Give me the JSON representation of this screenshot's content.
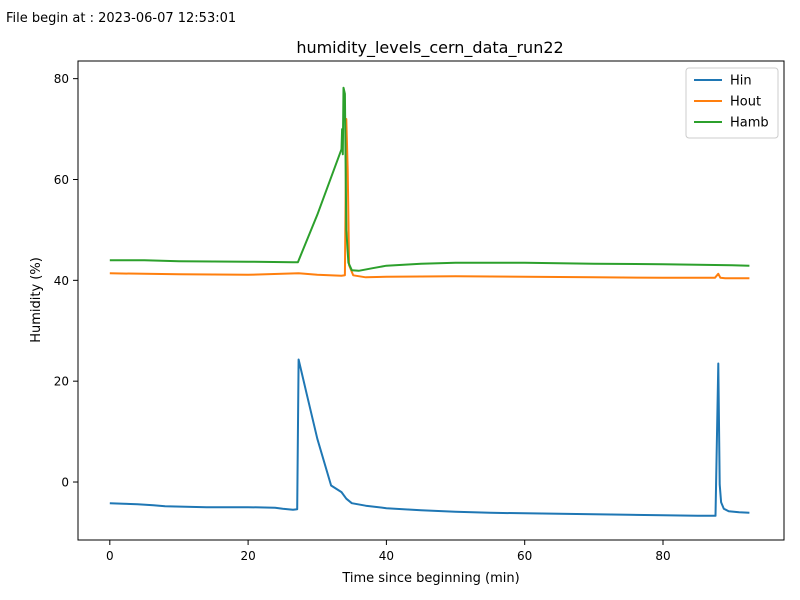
{
  "header_note": "File begin at : 2023-06-07 12:53:01",
  "chart_data": {
    "type": "line",
    "title": "humidity_levels_cern_data_run22",
    "xlabel": "Time since beginning (min)",
    "ylabel": "Humidity (%)",
    "xlim": [
      -4.6,
      97.5
    ],
    "ylim": [
      -11.5,
      83.5
    ],
    "xticks": [
      0,
      20,
      40,
      60,
      80
    ],
    "yticks": [
      0,
      20,
      40,
      60,
      80
    ],
    "grid": false,
    "legend_position": "top-right",
    "series": [
      {
        "name": "Hin",
        "color": "#1f77b4",
        "x": [
          0,
          2,
          4,
          6.3,
          8,
          14,
          20,
          23.9,
          25,
          26.5,
          27.1,
          27.3,
          28.5,
          30,
          32,
          33.5,
          34.2,
          35,
          37,
          40,
          45,
          50,
          55,
          60,
          65,
          70,
          75,
          80,
          85,
          87.6,
          88.0,
          88.2,
          88.4,
          88.8,
          89.5,
          91,
          92.5
        ],
        "y": [
          -4.2,
          -4.3,
          -4.4,
          -4.6,
          -4.8,
          -5.0,
          -5.0,
          -5.1,
          -5.3,
          -5.5,
          -5.4,
          24.3,
          17.3,
          8.6,
          -0.7,
          -2.0,
          -3.3,
          -4.2,
          -4.7,
          -5.2,
          -5.6,
          -5.9,
          -6.1,
          -6.2,
          -6.3,
          -6.4,
          -6.5,
          -6.6,
          -6.7,
          -6.7,
          23.5,
          -0.5,
          -4.0,
          -5.3,
          -5.8,
          -6.0,
          -6.1
        ]
      },
      {
        "name": "Hout",
        "color": "#ff7f0e",
        "x": [
          0,
          5,
          10,
          20,
          27.3,
          30,
          33.5,
          34.0,
          34.2,
          34.4,
          34.6,
          35.2,
          37,
          40,
          50,
          60,
          70,
          80,
          87.5,
          88.0,
          88.3,
          89,
          92.5
        ],
        "y": [
          41.4,
          41.3,
          41.2,
          41.1,
          41.4,
          41.1,
          40.9,
          41.0,
          72.0,
          62.0,
          43.0,
          41.0,
          40.6,
          40.7,
          40.8,
          40.7,
          40.6,
          40.5,
          40.5,
          41.3,
          40.5,
          40.4,
          40.4
        ]
      },
      {
        "name": "Hamb",
        "color": "#2ca02c",
        "x": [
          0,
          5,
          10,
          20,
          26.5,
          27.2,
          30,
          33.5,
          33.6,
          33.7,
          33.8,
          34.0,
          34.2,
          34.5,
          35.0,
          36.0,
          38,
          40,
          45,
          50,
          60,
          70,
          80,
          90,
          92.5
        ],
        "y": [
          44.0,
          44.0,
          43.8,
          43.7,
          43.6,
          43.6,
          53.0,
          66.0,
          70.0,
          65.0,
          78.2,
          77.0,
          50.0,
          43.5,
          42.0,
          41.9,
          42.4,
          42.9,
          43.3,
          43.5,
          43.5,
          43.3,
          43.2,
          43.0,
          42.9
        ]
      }
    ]
  }
}
